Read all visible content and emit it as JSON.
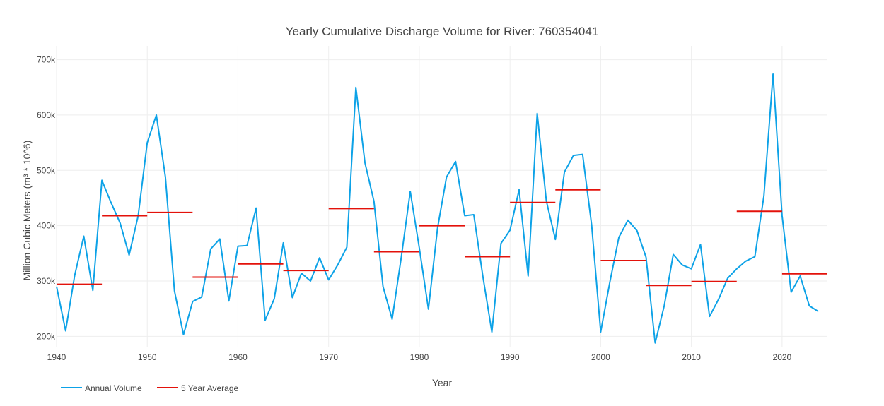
{
  "chart_data": {
    "type": "line",
    "title": "Yearly Cumulative Discharge Volume for River: 760354041",
    "xlabel": "Year",
    "ylabel": "Million Cubic Meters (m³ * 10^6)",
    "xlim": [
      1940,
      2025
    ],
    "ylim": [
      180000,
      725000
    ],
    "x_ticks": [
      1940,
      1950,
      1960,
      1970,
      1980,
      1990,
      2000,
      2010,
      2020
    ],
    "x_tick_labels": [
      "1940",
      "1950",
      "1960",
      "1970",
      "1980",
      "1990",
      "2000",
      "2010",
      "2020"
    ],
    "y_ticks": [
      200000,
      300000,
      400000,
      500000,
      600000,
      700000
    ],
    "y_tick_labels": [
      "200k",
      "300k",
      "400k",
      "500k",
      "600k",
      "700k"
    ],
    "grid": true,
    "legend_position": "bottom-left",
    "series": [
      {
        "name": "Annual Volume",
        "color": "#0da2e7",
        "x": [
          1940,
          1941,
          1942,
          1943,
          1944,
          1945,
          1946,
          1947,
          1948,
          1949,
          1950,
          1951,
          1952,
          1953,
          1954,
          1955,
          1956,
          1957,
          1958,
          1959,
          1960,
          1961,
          1962,
          1963,
          1964,
          1965,
          1966,
          1967,
          1968,
          1969,
          1970,
          1971,
          1972,
          1973,
          1974,
          1975,
          1976,
          1977,
          1978,
          1979,
          1980,
          1981,
          1982,
          1983,
          1984,
          1985,
          1986,
          1987,
          1988,
          1989,
          1990,
          1991,
          1992,
          1993,
          1994,
          1995,
          1996,
          1997,
          1998,
          1999,
          2000,
          2001,
          2002,
          2003,
          2004,
          2005,
          2006,
          2007,
          2008,
          2009,
          2010,
          2011,
          2012,
          2013,
          2014,
          2015,
          2016,
          2017,
          2018,
          2019,
          2020,
          2021,
          2022,
          2023,
          2024
        ],
        "y": [
          290000,
          210000,
          310000,
          381000,
          283000,
          482000,
          442000,
          405000,
          347000,
          418000,
          550000,
          600000,
          488000,
          282000,
          203000,
          263000,
          271000,
          358000,
          376000,
          264000,
          363000,
          364000,
          432000,
          229000,
          268000,
          369000,
          270000,
          314000,
          300000,
          342000,
          302000,
          329000,
          361000,
          650000,
          514000,
          444000,
          290000,
          231000,
          342000,
          462000,
          360000,
          249000,
          395000,
          488000,
          516000,
          418000,
          420000,
          309000,
          208000,
          368000,
          392000,
          465000,
          309000,
          603000,
          445000,
          375000,
          497000,
          527000,
          529000,
          401000,
          208000,
          297000,
          379000,
          410000,
          391000,
          343000,
          188000,
          255000,
          348000,
          329000,
          322000,
          366000,
          236000,
          267000,
          305000,
          322000,
          336000,
          344000,
          454000,
          674000,
          418000,
          280000,
          309000,
          255000,
          245000
        ]
      },
      {
        "name": "5 Year Average",
        "color": "#e3120b",
        "segments": [
          {
            "x": [
              1940,
              1945
            ],
            "y": 294000
          },
          {
            "x": [
              1945,
              1950
            ],
            "y": 418000
          },
          {
            "x": [
              1950,
              1955
            ],
            "y": 424000
          },
          {
            "x": [
              1955,
              1960
            ],
            "y": 307000
          },
          {
            "x": [
              1960,
              1965
            ],
            "y": 331000
          },
          {
            "x": [
              1965,
              1970
            ],
            "y": 319000
          },
          {
            "x": [
              1970,
              1975
            ],
            "y": 431000
          },
          {
            "x": [
              1975,
              1980
            ],
            "y": 353000
          },
          {
            "x": [
              1980,
              1985
            ],
            "y": 400000
          },
          {
            "x": [
              1985,
              1990
            ],
            "y": 344000
          },
          {
            "x": [
              1990,
              1995
            ],
            "y": 442000
          },
          {
            "x": [
              1995,
              2000
            ],
            "y": 465000
          },
          {
            "x": [
              2000,
              2005
            ],
            "y": 337000
          },
          {
            "x": [
              2005,
              2010
            ],
            "y": 292000
          },
          {
            "x": [
              2010,
              2015
            ],
            "y": 299000
          },
          {
            "x": [
              2015,
              2020
            ],
            "y": 426000
          },
          {
            "x": [
              2020,
              2025
            ],
            "y": 313000
          }
        ]
      }
    ]
  }
}
